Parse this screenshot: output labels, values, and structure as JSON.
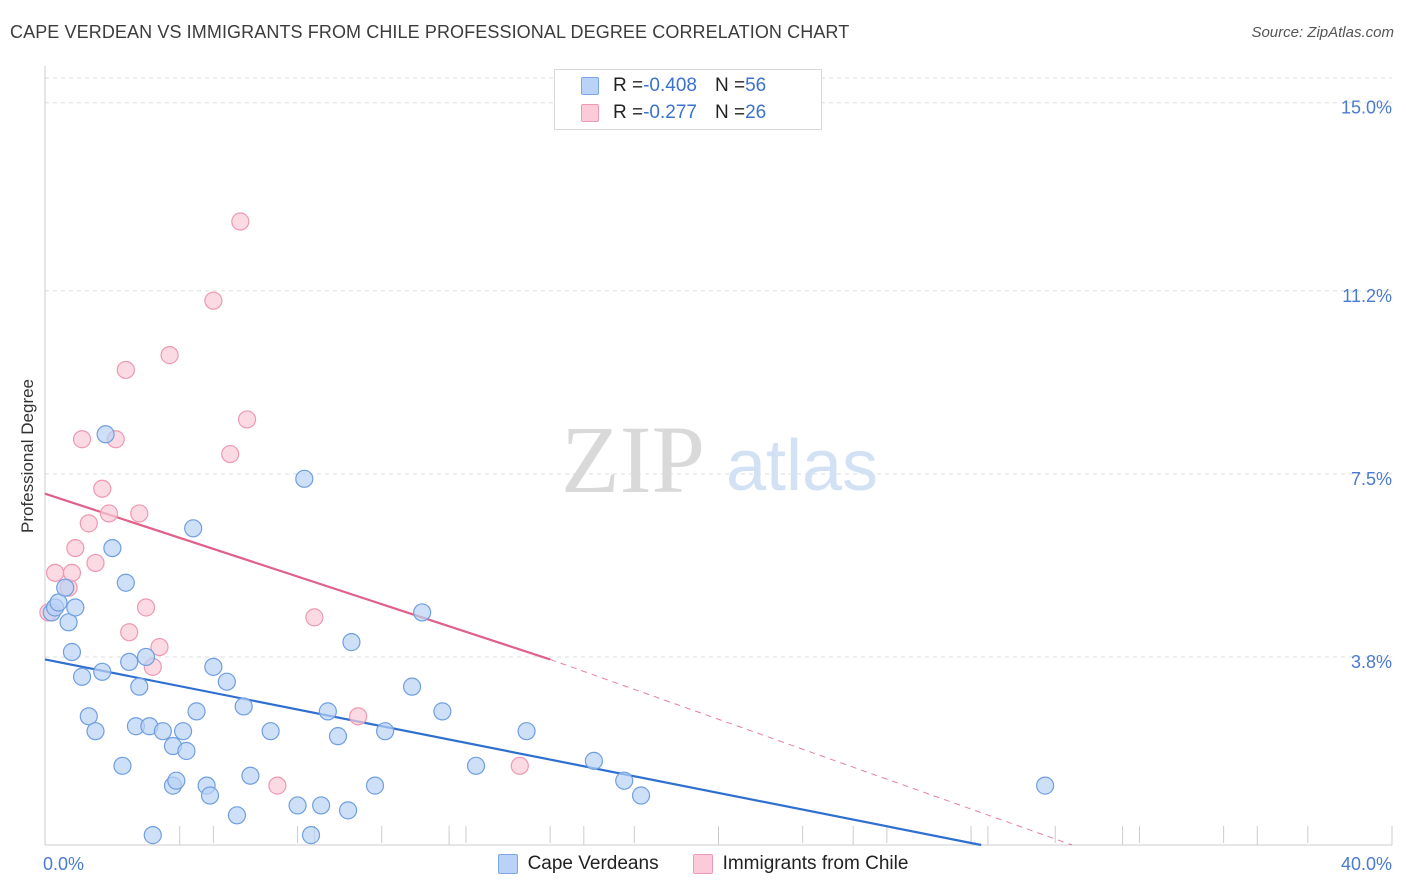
{
  "header": {
    "title": "CAPE VERDEAN VS IMMIGRANTS FROM CHILE PROFESSIONAL DEGREE CORRELATION CHART",
    "source": "Source: ZipAtlas.com"
  },
  "watermark": {
    "zip": "ZIP",
    "atlas": "atlas"
  },
  "legend": {
    "r_label": "R = ",
    "n_label": "N = ",
    "rows": [
      {
        "r": "-0.408",
        "n": "56"
      },
      {
        "r": "-0.277",
        "n": "26"
      }
    ]
  },
  "colors": {
    "blue_fill": "#b9d2f5",
    "blue_stroke": "#6f9fe0",
    "blue_line": "#2f6fd0",
    "pink_fill": "#fbcbd9",
    "pink_stroke": "#ee98b2",
    "pink_line": "#e0608a",
    "grid": "#dddddd",
    "tick_text": "#4a7bd0"
  },
  "chart_data": {
    "type": "scatter",
    "title": "CAPE VERDEAN VS IMMIGRANTS FROM CHILE PROFESSIONAL DEGREE CORRELATION CHART",
    "xlabel": "",
    "ylabel": "Professional Degree",
    "xlim": [
      0,
      40
    ],
    "ylim": [
      0,
      15.5
    ],
    "x_tick_labels": [
      "0.0%",
      "40.0%"
    ],
    "y_ticks": [
      3.8,
      7.5,
      11.2,
      15.0
    ],
    "y_tick_labels": [
      "3.8%",
      "7.5%",
      "11.2%",
      "15.0%"
    ],
    "grid": true,
    "legend_position": "top-center",
    "series": [
      {
        "name": "Cape Verdeans",
        "color": "blue",
        "r": -0.408,
        "n": 56,
        "trend": {
          "x0": 0,
          "y0": 3.75,
          "x1": 27.8,
          "y1": 0.0
        },
        "points": [
          [
            0.2,
            4.7
          ],
          [
            0.3,
            4.8
          ],
          [
            0.4,
            4.9
          ],
          [
            0.6,
            5.2
          ],
          [
            0.7,
            4.5
          ],
          [
            0.8,
            3.9
          ],
          [
            0.9,
            4.8
          ],
          [
            1.1,
            3.4
          ],
          [
            1.3,
            2.6
          ],
          [
            1.5,
            2.3
          ],
          [
            1.8,
            8.3
          ],
          [
            1.7,
            3.5
          ],
          [
            2.0,
            6.0
          ],
          [
            2.3,
            1.6
          ],
          [
            2.4,
            5.3
          ],
          [
            2.5,
            3.7
          ],
          [
            2.7,
            2.4
          ],
          [
            2.8,
            3.2
          ],
          [
            3.0,
            3.8
          ],
          [
            3.1,
            2.4
          ],
          [
            3.2,
            0.2
          ],
          [
            3.5,
            2.3
          ],
          [
            3.8,
            2.0
          ],
          [
            3.8,
            1.2
          ],
          [
            3.9,
            1.3
          ],
          [
            4.1,
            2.3
          ],
          [
            4.2,
            1.9
          ],
          [
            4.4,
            6.4
          ],
          [
            4.5,
            2.7
          ],
          [
            4.8,
            1.2
          ],
          [
            4.9,
            1.0
          ],
          [
            5.0,
            3.6
          ],
          [
            5.4,
            3.3
          ],
          [
            5.7,
            0.6
          ],
          [
            5.9,
            2.8
          ],
          [
            6.1,
            1.4
          ],
          [
            6.7,
            2.3
          ],
          [
            7.5,
            0.8
          ],
          [
            7.7,
            7.4
          ],
          [
            7.9,
            0.2
          ],
          [
            8.2,
            0.8
          ],
          [
            8.4,
            2.7
          ],
          [
            8.7,
            2.2
          ],
          [
            9.0,
            0.7
          ],
          [
            9.1,
            4.1
          ],
          [
            9.8,
            1.2
          ],
          [
            10.1,
            2.3
          ],
          [
            10.9,
            3.2
          ],
          [
            11.2,
            4.7
          ],
          [
            11.8,
            2.7
          ],
          [
            12.8,
            1.6
          ],
          [
            14.3,
            2.3
          ],
          [
            16.3,
            1.7
          ],
          [
            17.2,
            1.3
          ],
          [
            17.7,
            1.0
          ],
          [
            29.7,
            1.2
          ]
        ]
      },
      {
        "name": "Immigrants from Chile",
        "color": "pink",
        "r": -0.277,
        "n": 26,
        "trend": {
          "x0": 0,
          "y0": 7.1,
          "x1": 15.0,
          "y1": 3.75
        },
        "trend_extension": {
          "x0": 15.0,
          "y0": 3.75,
          "x1": 30.5,
          "y1": 0.0
        },
        "points": [
          [
            0.1,
            4.7
          ],
          [
            0.3,
            5.5
          ],
          [
            0.7,
            5.2
          ],
          [
            0.8,
            5.5
          ],
          [
            0.9,
            6.0
          ],
          [
            1.1,
            8.2
          ],
          [
            1.3,
            6.5
          ],
          [
            1.5,
            5.7
          ],
          [
            1.7,
            7.2
          ],
          [
            1.9,
            6.7
          ],
          [
            2.1,
            8.2
          ],
          [
            2.4,
            9.6
          ],
          [
            2.5,
            4.3
          ],
          [
            2.8,
            6.7
          ],
          [
            3.0,
            4.8
          ],
          [
            3.2,
            3.6
          ],
          [
            3.4,
            4.0
          ],
          [
            3.7,
            9.9
          ],
          [
            5.0,
            11.0
          ],
          [
            5.5,
            7.9
          ],
          [
            5.8,
            12.6
          ],
          [
            6.0,
            8.6
          ],
          [
            6.9,
            1.2
          ],
          [
            8.0,
            4.6
          ],
          [
            9.3,
            2.6
          ],
          [
            14.1,
            1.6
          ]
        ]
      }
    ]
  },
  "bottom_legend": {
    "items": [
      {
        "label": "Cape Verdeans"
      },
      {
        "label": "Immigrants from Chile"
      }
    ]
  }
}
